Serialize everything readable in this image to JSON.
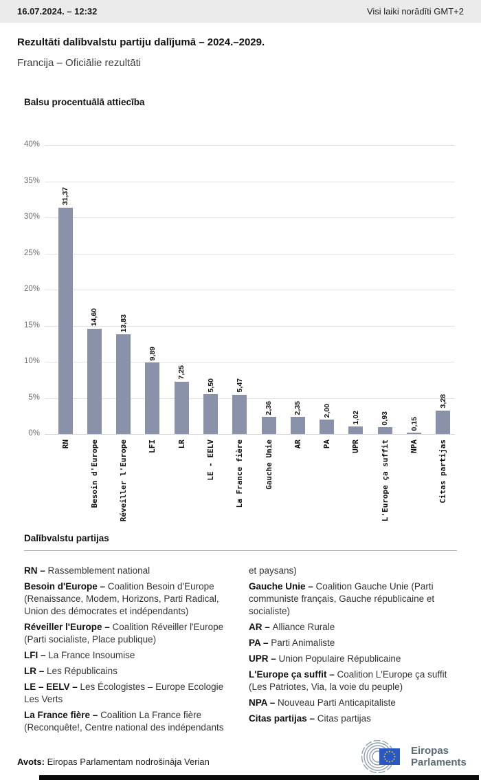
{
  "header": {
    "datetime": "16.07.2024. – 12:32",
    "timezone_note": "Visi laiki norādīti GMT+2"
  },
  "page": {
    "title": "Rezultāti dalībvalstu partiju dalījumā – 2024.–2029.",
    "subtitle": "Francija – Oficiālie rezultāti"
  },
  "chart_data": {
    "type": "bar",
    "title": "Balsu procentuālā attiecība",
    "categories": [
      "RN",
      "Besoin d'Europe",
      "Réveiller l'Europe",
      "LFI",
      "LR",
      "LE - EELV",
      "La France fière",
      "Gauche Unie",
      "AR",
      "PA",
      "UPR",
      "L'Europe ça suffit",
      "NPA",
      "Citas partijas"
    ],
    "values": [
      31.37,
      14.6,
      13.83,
      9.89,
      7.25,
      5.5,
      5.47,
      2.36,
      2.35,
      2.0,
      1.02,
      0.93,
      0.15,
      3.28
    ],
    "value_labels": [
      "31,37",
      "14,60",
      "13,83",
      "9,89",
      "7,25",
      "5,50",
      "5,47",
      "2,36",
      "2,35",
      "2,00",
      "1,02",
      "0,93",
      "0,15",
      "3,28"
    ],
    "xlabel": "",
    "ylabel": "",
    "ylim": [
      0,
      40
    ],
    "ytick_step": 5,
    "ytick_labels": [
      "0%",
      "5%",
      "10%",
      "15%",
      "20%",
      "25%",
      "30%",
      "35%",
      "40%"
    ],
    "grid": true,
    "bar_color": "#8a92a9"
  },
  "legend": {
    "heading": "Dalībvalstu partijas",
    "left": [
      {
        "term": "RN –",
        "desc": "Rassemblement national"
      },
      {
        "term": "Besoin d'Europe –",
        "desc": "Coalition Besoin d'Europe (Renaissance, Modem, Horizons, Parti Radical, Union des démocrates et indépendants)"
      },
      {
        "term": "Réveiller l'Europe –",
        "desc": "Coalition Réveiller l'Europe (Parti socialiste, Place publique)"
      },
      {
        "term": "LFI –",
        "desc": "La France Insoumise"
      },
      {
        "term": "LR –",
        "desc": "Les Républicains"
      },
      {
        "term": "LE – EELV –",
        "desc": "Les Écologistes – Europe Ecologie Les Verts"
      },
      {
        "term": "La France fière –",
        "desc": "Coalition La France fière (Reconquête!, Centre national des indépendants"
      }
    ],
    "right": [
      {
        "term": "",
        "desc": "et paysans)"
      },
      {
        "term": "Gauche Unie –",
        "desc": "Coalition Gauche Unie (Parti communiste français, Gauche républicaine et socialiste)"
      },
      {
        "term": "AR –",
        "desc": "Alliance Rurale"
      },
      {
        "term": "PA –",
        "desc": "Parti Animaliste"
      },
      {
        "term": "UPR –",
        "desc": "Union Populaire Républicaine"
      },
      {
        "term": "L'Europe ça suffit –",
        "desc": "Coalition L'Europe ça suffit (Les Patriotes, Via, la voie du peuple)"
      },
      {
        "term": "NPA –",
        "desc": "Nouveau Parti Anticapitaliste"
      },
      {
        "term": "Citas partijas –",
        "desc": "Citas partijas"
      }
    ]
  },
  "footer": {
    "source_label": "Avots:",
    "source_text": "Eiropas Parlamentam nodrošināja Verian",
    "logo_line1": "Eiropas",
    "logo_line2": "Parlaments",
    "logo_colors": {
      "arcs": "#93a1ab",
      "flag": "#2a57c6",
      "stars": "#f7d117",
      "text": "#5a6b78"
    }
  }
}
